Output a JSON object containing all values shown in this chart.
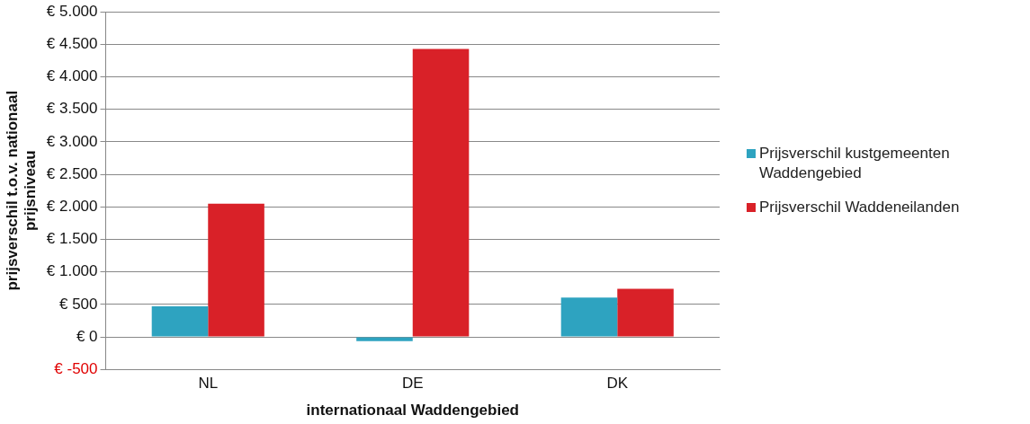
{
  "chart_data": {
    "type": "bar",
    "xlabel": "internationaal Waddengebied",
    "ylabel": "prijsverschil t.o.v. nationaal prijsniveau",
    "categories": [
      "NL",
      "DE",
      "DK"
    ],
    "series": [
      {
        "name": "Prijsverschil kustgemeenten Waddengebied",
        "color": "#2ea3c0",
        "values": [
          470,
          -65,
          605
        ]
      },
      {
        "name": "Prijsverschil Waddeneilanden",
        "color": "#d92128",
        "values": [
          2050,
          4430,
          740
        ]
      }
    ],
    "ylim": [
      -500,
      5000
    ],
    "yticks": [
      {
        "value": -500,
        "label": "€ -500"
      },
      {
        "value": 0,
        "label": "€ 0"
      },
      {
        "value": 500,
        "label": "€ 500"
      },
      {
        "value": 1000,
        "label": "€ 1.000"
      },
      {
        "value": 1500,
        "label": "€ 1.500"
      },
      {
        "value": 2000,
        "label": "€ 2.000"
      },
      {
        "value": 2500,
        "label": "€ 2.500"
      },
      {
        "value": 3000,
        "label": "€ 3.000"
      },
      {
        "value": 3500,
        "label": "€ 3.500"
      },
      {
        "value": 4000,
        "label": "€ 4.000"
      },
      {
        "value": 4500,
        "label": "€ 4.500"
      },
      {
        "value": 5000,
        "label": "€ 5.000"
      }
    ],
    "grid": "y",
    "legend": "right"
  }
}
